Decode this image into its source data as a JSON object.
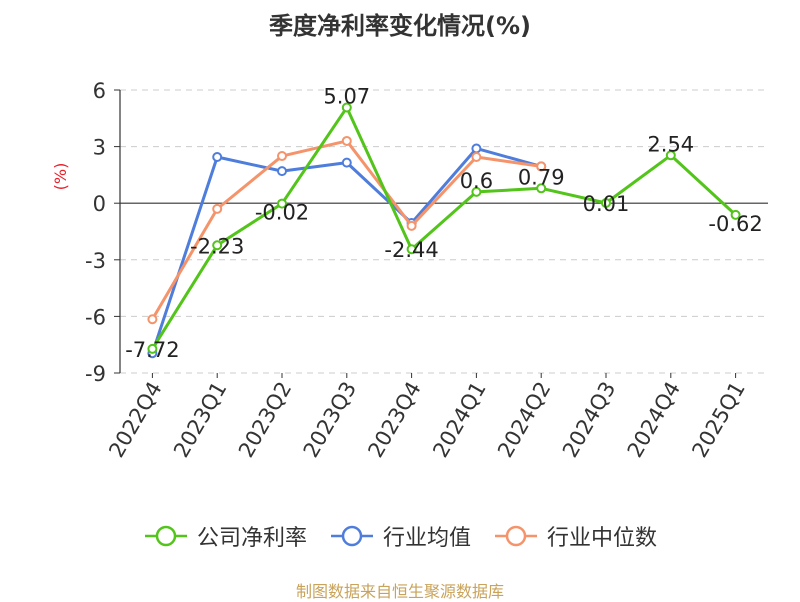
{
  "chart_data": {
    "type": "line",
    "title": "季度净利率变化情况(%)",
    "ylabel": "(%)",
    "xlabel": "",
    "categories": [
      "2022Q4",
      "2023Q1",
      "2023Q2",
      "2023Q3",
      "2023Q4",
      "2024Q1",
      "2024Q2",
      "2024Q3",
      "2024Q4",
      "2025Q1"
    ],
    "ylim": [
      -9,
      6
    ],
    "yticks": [
      6,
      3,
      0,
      -3,
      -6,
      -9
    ],
    "grid": true,
    "legend_position": "bottom",
    "series": [
      {
        "name": "公司净利率",
        "color": "#52c41a",
        "values": [
          -7.72,
          -2.23,
          -0.02,
          5.07,
          -2.44,
          0.6,
          0.79,
          0.01,
          2.54,
          -0.62
        ],
        "labels": [
          "-7.72",
          "-2.23",
          "-0.02",
          "5.07",
          "-2.44",
          "0.6",
          "0.79",
          "0.01",
          "2.54",
          "-0.62"
        ]
      },
      {
        "name": "行业均值",
        "color": "#4e7ddb",
        "values": [
          -7.95,
          2.45,
          1.7,
          2.15,
          -1.05,
          2.9,
          1.95,
          null,
          null,
          null
        ]
      },
      {
        "name": "行业中位数",
        "color": "#f5936a",
        "values": [
          -6.15,
          -0.3,
          2.5,
          3.3,
          -1.2,
          2.45,
          1.95,
          null,
          null,
          null
        ]
      }
    ]
  },
  "source_note": "制图数据来自恒生聚源数据库"
}
